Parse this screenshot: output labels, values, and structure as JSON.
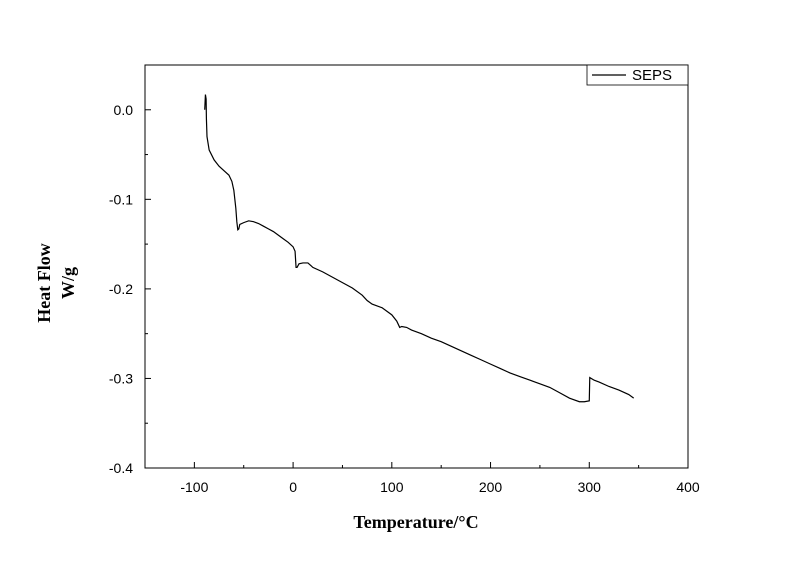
{
  "chart_data": {
    "type": "line",
    "xlabel": "Temperature/°C",
    "ylabel_line1": "Heat Flow",
    "ylabel_line2": "W/g",
    "xlim": [
      -150,
      400
    ],
    "ylim": [
      -0.4,
      0.05
    ],
    "x_ticks": [
      -100,
      0,
      100,
      200,
      300,
      400
    ],
    "x_tick_labels": [
      "-100",
      "0",
      "100",
      "200",
      "300",
      "400"
    ],
    "y_ticks": [
      0.0,
      -0.1,
      -0.2,
      -0.3,
      -0.4
    ],
    "y_tick_labels": [
      "0.0",
      "-0.1",
      "-0.2",
      "-0.3",
      "-0.4"
    ],
    "legend_position": "top-right",
    "grid": false,
    "series": [
      {
        "name": "SEPS",
        "color": "#000000",
        "points": [
          [
            -89.5,
            0.0
          ],
          [
            -88.8,
            0.017
          ],
          [
            -88.1,
            0.012
          ],
          [
            -87.8,
            -0.01
          ],
          [
            -87.2,
            -0.03
          ],
          [
            -85,
            -0.045
          ],
          [
            -80,
            -0.056
          ],
          [
            -75,
            -0.063
          ],
          [
            -70,
            -0.068
          ],
          [
            -65,
            -0.073
          ],
          [
            -62,
            -0.08
          ],
          [
            -60,
            -0.09
          ],
          [
            -58,
            -0.11
          ],
          [
            -57,
            -0.125
          ],
          [
            -56,
            -0.134
          ],
          [
            -55,
            -0.133
          ],
          [
            -54,
            -0.128
          ],
          [
            -50,
            -0.126
          ],
          [
            -45,
            -0.124
          ],
          [
            -40,
            -0.125
          ],
          [
            -35,
            -0.127
          ],
          [
            -30,
            -0.13
          ],
          [
            -25,
            -0.133
          ],
          [
            -20,
            -0.136
          ],
          [
            -15,
            -0.14
          ],
          [
            -10,
            -0.144
          ],
          [
            -5,
            -0.148
          ],
          [
            0,
            -0.153
          ],
          [
            2,
            -0.158
          ],
          [
            3,
            -0.176
          ],
          [
            4,
            -0.176
          ],
          [
            6,
            -0.172
          ],
          [
            10,
            -0.171
          ],
          [
            15,
            -0.171
          ],
          [
            18,
            -0.174
          ],
          [
            20,
            -0.176
          ],
          [
            30,
            -0.181
          ],
          [
            40,
            -0.187
          ],
          [
            50,
            -0.193
          ],
          [
            60,
            -0.199
          ],
          [
            70,
            -0.207
          ],
          [
            75,
            -0.213
          ],
          [
            80,
            -0.217
          ],
          [
            90,
            -0.221
          ],
          [
            100,
            -0.229
          ],
          [
            105,
            -0.236
          ],
          [
            108,
            -0.243
          ],
          [
            110,
            -0.242
          ],
          [
            115,
            -0.243
          ],
          [
            120,
            -0.246
          ],
          [
            130,
            -0.25
          ],
          [
            140,
            -0.255
          ],
          [
            150,
            -0.259
          ],
          [
            160,
            -0.264
          ],
          [
            170,
            -0.269
          ],
          [
            180,
            -0.274
          ],
          [
            190,
            -0.279
          ],
          [
            200,
            -0.284
          ],
          [
            210,
            -0.289
          ],
          [
            220,
            -0.294
          ],
          [
            230,
            -0.298
          ],
          [
            240,
            -0.302
          ],
          [
            250,
            -0.306
          ],
          [
            260,
            -0.31
          ],
          [
            270,
            -0.316
          ],
          [
            280,
            -0.322
          ],
          [
            290,
            -0.326
          ],
          [
            295,
            -0.326
          ],
          [
            300,
            -0.325
          ],
          [
            300.5,
            -0.299
          ],
          [
            305,
            -0.302
          ],
          [
            310,
            -0.304
          ],
          [
            320,
            -0.309
          ],
          [
            330,
            -0.313
          ],
          [
            340,
            -0.318
          ],
          [
            345,
            -0.322
          ]
        ]
      }
    ]
  }
}
